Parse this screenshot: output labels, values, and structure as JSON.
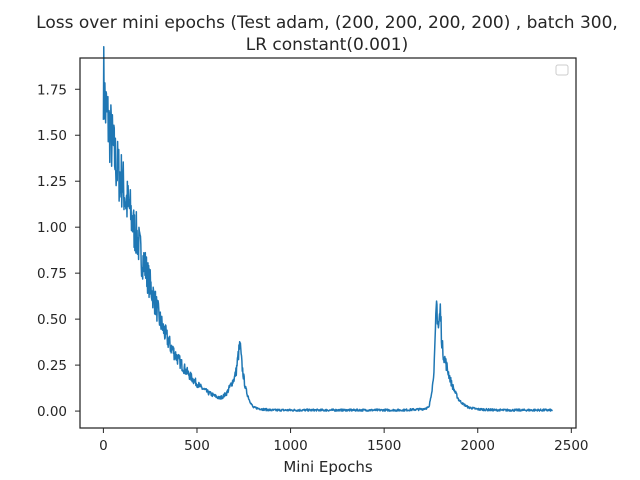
{
  "chart_data": {
    "type": "line",
    "title_line1": "Loss over mini epochs (Test adam, (200, 200, 200, 200) , batch 300,",
    "title_line2": "LR constant(0.001)",
    "xlabel": "Mini Epochs",
    "ylabel": "",
    "xlim": [
      -125,
      2525
    ],
    "ylim": [
      -0.092,
      1.92
    ],
    "xticks": [
      0,
      500,
      1000,
      1500,
      2000,
      2500
    ],
    "yticks": [
      0.0,
      0.25,
      0.5,
      0.75,
      1.0,
      1.25,
      1.5,
      1.75
    ],
    "xtick_labels": [
      "0",
      "500",
      "1000",
      "1500",
      "2000",
      "2500"
    ],
    "ytick_labels": [
      "0.00",
      "0.25",
      "0.50",
      "0.75",
      "1.00",
      "1.25",
      "1.50",
      "1.75"
    ],
    "grid": false,
    "legend": "top-right (empty)",
    "line_color": "#1f77b4",
    "series": [
      {
        "x": [
          0,
          10,
          20,
          40,
          60,
          80,
          100,
          120,
          140,
          160,
          180,
          200,
          220,
          240,
          260,
          280,
          300,
          330,
          360,
          400,
          440,
          480,
          520,
          560,
          600,
          620,
          640,
          660,
          680,
          700,
          710,
          720,
          730,
          740,
          750,
          760,
          780,
          800,
          850,
          900,
          1000,
          1100,
          1200,
          1300,
          1400,
          1500,
          1600,
          1700,
          1740,
          1760,
          1770,
          1780,
          1790,
          1800,
          1810,
          1820,
          1840,
          1860,
          1880,
          1900,
          1920,
          1950,
          2000,
          2100,
          2200,
          2300,
          2400
        ],
        "y": [
          1.82,
          1.65,
          1.6,
          1.5,
          1.38,
          1.3,
          1.25,
          1.15,
          1.1,
          1.0,
          0.95,
          0.85,
          0.8,
          0.72,
          0.65,
          0.58,
          0.5,
          0.42,
          0.35,
          0.28,
          0.22,
          0.17,
          0.13,
          0.1,
          0.08,
          0.07,
          0.08,
          0.1,
          0.14,
          0.18,
          0.22,
          0.3,
          0.36,
          0.25,
          0.18,
          0.12,
          0.06,
          0.02,
          0.01,
          0.005,
          0.005,
          0.005,
          0.005,
          0.005,
          0.005,
          0.005,
          0.005,
          0.01,
          0.02,
          0.15,
          0.3,
          0.59,
          0.45,
          0.55,
          0.35,
          0.3,
          0.22,
          0.15,
          0.1,
          0.06,
          0.04,
          0.02,
          0.01,
          0.005,
          0.005,
          0.005,
          0.005
        ]
      }
    ]
  }
}
